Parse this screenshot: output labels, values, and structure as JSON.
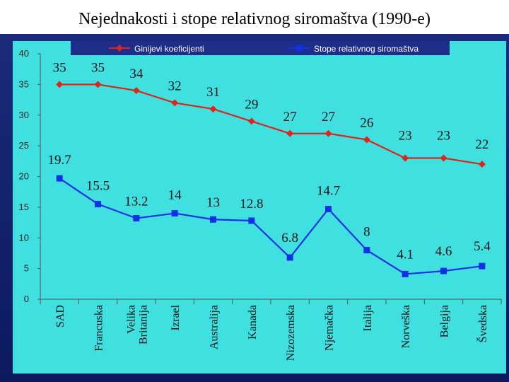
{
  "slide": {
    "title": "Nejednakosti i stope relativnog siromaštva (1990-e)"
  },
  "colors": {
    "plot_bg": "#40e0e0",
    "series_gini": "#e0241c",
    "series_poverty": "#1230e6",
    "legend_bg": "#1c2e8a",
    "page_bg": "#0b1a5e"
  },
  "chart_data": {
    "type": "line",
    "title": "Nejednakosti i stope relativnog siromaštva (1990-e)",
    "categories": [
      "SAD",
      "Francuska",
      "Velika Britanija",
      "Izrael",
      "Australija",
      "Kanada",
      "Nizozemska",
      "Njemačka",
      "Italija",
      "Norveška",
      "Belgija",
      "Švedska"
    ],
    "ylim": [
      0,
      40
    ],
    "yticks": [
      0,
      5,
      10,
      15,
      20,
      25,
      30,
      35,
      40
    ],
    "legend_position": "top",
    "series": [
      {
        "name": "Ginijevi koeficijenti",
        "marker": "diamond",
        "values": [
          35,
          35,
          34,
          32,
          31,
          29,
          27,
          27,
          26,
          23,
          23,
          22
        ],
        "labels": [
          "35",
          "35",
          "34",
          "32",
          "31",
          "29",
          "27",
          "27",
          "26",
          "23",
          "23",
          "22"
        ]
      },
      {
        "name": "Stope relativnog siromaštva",
        "marker": "square",
        "values": [
          19.7,
          15.5,
          13.2,
          14,
          13,
          12.8,
          6.8,
          14.7,
          8,
          4.1,
          4.6,
          5.4
        ],
        "labels": [
          "19.7",
          "15.5",
          "13.2",
          "14",
          "13",
          "12.8",
          "6.8",
          "14.7",
          "8",
          "4.1",
          "4.6",
          "5.4"
        ]
      }
    ]
  }
}
